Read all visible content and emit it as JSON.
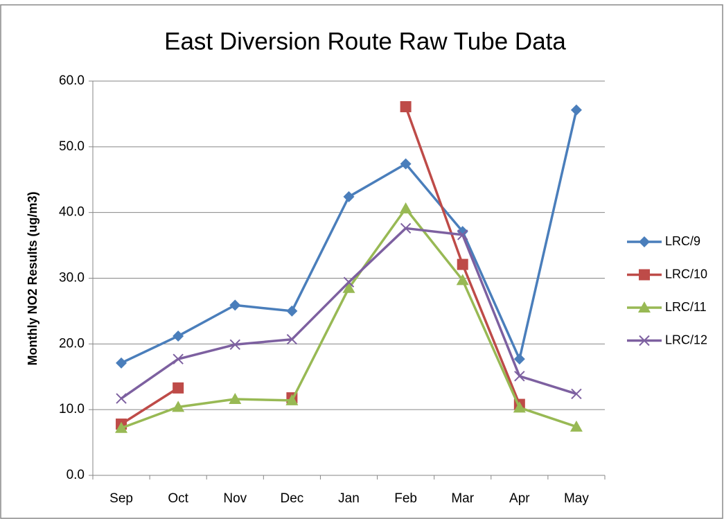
{
  "chart_data": {
    "type": "line",
    "title": "East Diversion Route Raw Tube Data",
    "y_label": "Monthly NO2 Results (ug/m3)",
    "categories": [
      "Sep",
      "Oct",
      "Nov",
      "Dec",
      "Jan",
      "Feb",
      "Mar",
      "Apr",
      "May"
    ],
    "series": [
      {
        "name": "LRC/9",
        "color": "#4a7ebb",
        "marker": "diamond",
        "values": [
          17.1,
          21.2,
          25.9,
          25.0,
          42.4,
          47.4,
          37.1,
          17.7,
          55.6
        ]
      },
      {
        "name": "LRC/10",
        "color": "#be4b48",
        "marker": "square",
        "values": [
          7.8,
          13.3,
          null,
          11.8,
          null,
          56.1,
          32.1,
          10.8,
          null
        ]
      },
      {
        "name": "LRC/11",
        "color": "#98b954",
        "marker": "triangle",
        "values": [
          7.2,
          10.4,
          11.6,
          11.4,
          28.5,
          40.6,
          29.7,
          10.3,
          7.4
        ]
      },
      {
        "name": "LRC/12",
        "color": "#7d60a0",
        "marker": "x",
        "values": [
          11.7,
          17.7,
          19.9,
          20.7,
          29.4,
          37.6,
          36.6,
          15.1,
          12.4
        ]
      }
    ],
    "ylim": [
      0,
      60
    ],
    "yticks": [
      {
        "value": 0,
        "label": "0.0"
      },
      {
        "value": 10,
        "label": "10.0"
      },
      {
        "value": 20,
        "label": "20.0"
      },
      {
        "value": 30,
        "label": "30.0"
      },
      {
        "value": 40,
        "label": "40.0"
      },
      {
        "value": 50,
        "label": "50.0"
      },
      {
        "value": 60,
        "label": "60.0"
      }
    ],
    "grid": true,
    "legend": "right"
  }
}
